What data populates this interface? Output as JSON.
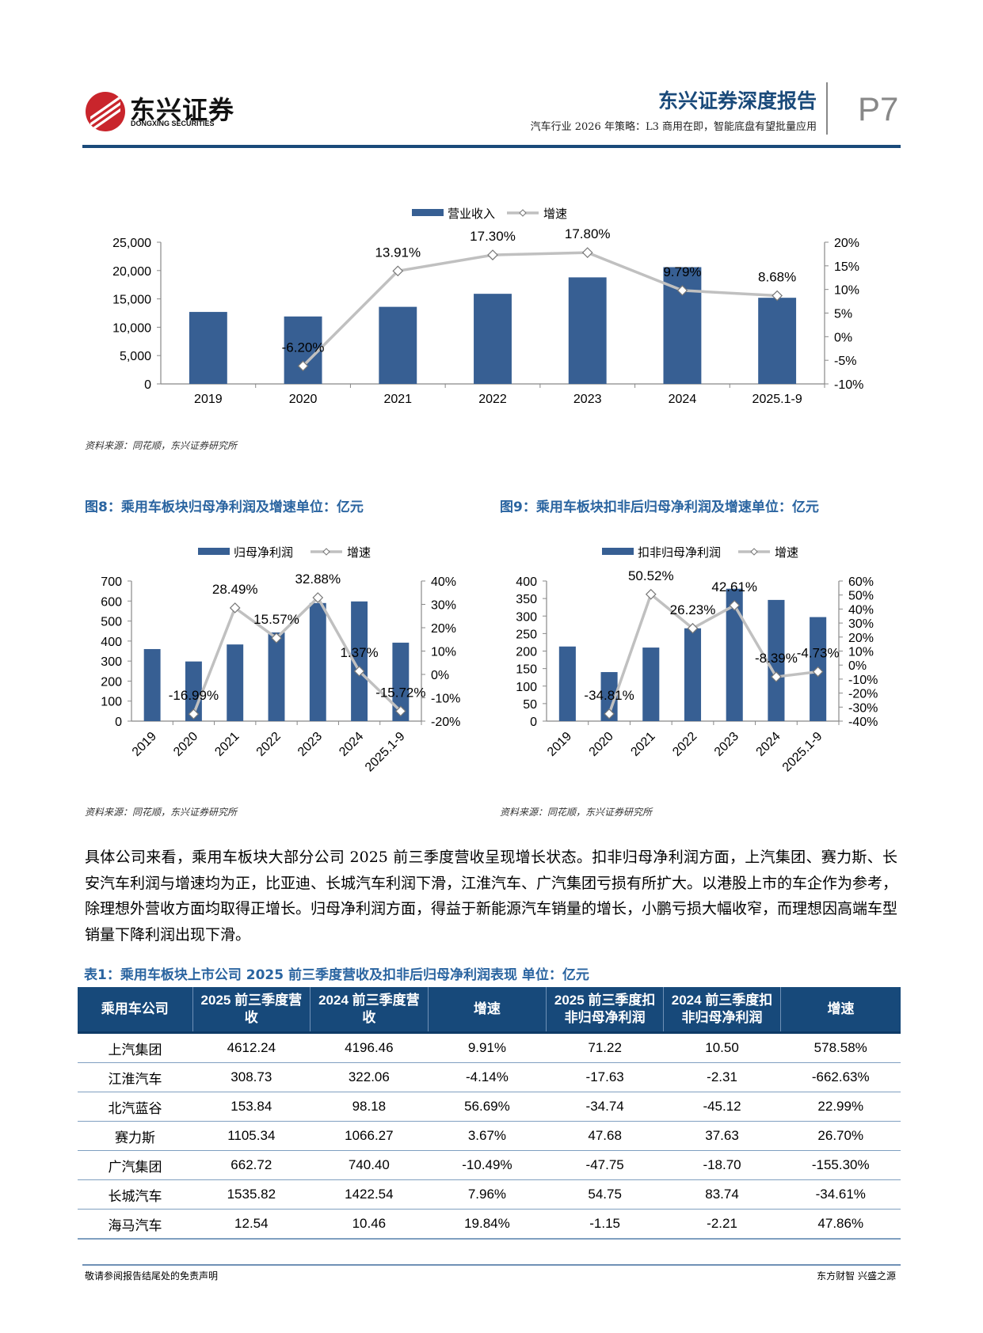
{
  "header": {
    "logo_cn": "东兴证券",
    "logo_en": "DONGXING SECURITIES",
    "report_title": "东兴证券深度报告",
    "report_subtitle": "汽车行业 2026 年策略：L3 商用在即，智能底盘有望批量应用",
    "page_number": "P7"
  },
  "colors": {
    "bar": "#375f93",
    "line": "#c0c0c0",
    "title_blue": "#2a64a0",
    "header_blue": "#17497a"
  },
  "figures": [
    {
      "title": "",
      "source": "资料来源：同花顺，东兴证券研究所"
    },
    {
      "title": "图8：乘用车板块归母净利润及增速单位：亿元",
      "source": "资料来源：同花顺，东兴证券研究所"
    },
    {
      "title": "图9：乘用车板块扣非后归母净利润及增速单位：亿元",
      "source": "资料来源：同花顺，东兴证券研究所"
    }
  ],
  "chart_data": [
    {
      "type": "bar+line",
      "categories": [
        "2019",
        "2020",
        "2021",
        "2022",
        "2023",
        "2024",
        "2025.1-9"
      ],
      "series": [
        {
          "name": "营业收入",
          "type": "bar",
          "axis": "left",
          "values": [
            12700,
            11900,
            13600,
            15900,
            18800,
            20600,
            15200
          ]
        },
        {
          "name": "增速",
          "type": "line",
          "axis": "right",
          "values": [
            null,
            -6.2,
            13.91,
            17.3,
            17.8,
            9.79,
            8.68
          ],
          "labels": [
            "",
            "-6.20%",
            "13.91%",
            "17.30%",
            "17.80%",
            "9.79%",
            "8.68%"
          ]
        }
      ],
      "ylim_left": [
        0,
        25000
      ],
      "ystep_left": 5000,
      "ylim_right": [
        -10,
        20
      ],
      "ystep_right": 5,
      "right_unit": "%",
      "left_thousands": true,
      "legend": "top",
      "xlabels_rotated": false
    },
    {
      "type": "bar+line",
      "categories": [
        "2019",
        "2020",
        "2021",
        "2022",
        "2023",
        "2024",
        "2025.1-9"
      ],
      "series": [
        {
          "name": "归母净利润",
          "type": "bar",
          "axis": "left",
          "values": [
            360,
            298,
            383,
            443,
            590,
            598,
            392
          ]
        },
        {
          "name": "增速",
          "type": "line",
          "axis": "right",
          "values": [
            null,
            -16.99,
            28.49,
            15.57,
            32.88,
            1.37,
            -15.72
          ],
          "labels": [
            "",
            "-16.99%",
            "28.49%",
            "15.57%",
            "32.88%",
            "1.37%",
            "-15.72%"
          ]
        }
      ],
      "ylim_left": [
        0,
        700
      ],
      "ystep_left": 100,
      "ylim_right": [
        -20,
        40
      ],
      "ystep_right": 10,
      "right_unit": "%",
      "left_thousands": false,
      "legend": "top",
      "xlabels_rotated": true
    },
    {
      "type": "bar+line",
      "categories": [
        "2019",
        "2020",
        "2021",
        "2022",
        "2023",
        "2024",
        "2025.1-9"
      ],
      "series": [
        {
          "name": "扣非归母净利润",
          "type": "bar",
          "axis": "left",
          "values": [
            213,
            140,
            210,
            265,
            378,
            346,
            297
          ]
        },
        {
          "name": "增速",
          "type": "line",
          "axis": "right",
          "values": [
            null,
            -34.81,
            50.52,
            26.23,
            42.61,
            -8.39,
            -4.73
          ],
          "labels": [
            "",
            "-34.81%",
            "50.52%",
            "26.23%",
            "42.61%",
            "-8.39%",
            "-4.73%"
          ]
        }
      ],
      "ylim_left": [
        0,
        400
      ],
      "ystep_left": 50,
      "ylim_right": [
        -40,
        60
      ],
      "ystep_right": 10,
      "right_unit": "%",
      "left_thousands": false,
      "legend": "top",
      "xlabels_rotated": true
    }
  ],
  "body": {
    "paragraph": "具体公司来看，乘用车板块大部分公司 2025 前三季度营收呈现增长状态。扣非归母净利润方面，上汽集团、赛力斯、长安汽车利润与增速均为正，比亚迪、长城汽车利润下滑，江淮汽车、广汽集团亏损有所扩大。以港股上市的车企作为参考，除理想外营收方面均取得正增长。归母净利润方面，得益于新能源汽车销量的增长，小鹏亏损大幅收窄，而理想因高端车型销量下降利润出现下滑。"
  },
  "table": {
    "title": "表1：乘用车板块上市公司 2025 前三季度营收及扣非后归母净利润表现  单位：亿元",
    "headers": [
      "乘用车公司",
      "2025 前三季度营收",
      "2024 前三季度营收",
      "增速",
      "2025 前三季度扣非归母净利润",
      "2024 前三季度扣非归母净利润",
      "增速"
    ],
    "rows": [
      [
        "上汽集团",
        "4612.24",
        "4196.46",
        "9.91%",
        "71.22",
        "10.50",
        "578.58%"
      ],
      [
        "江淮汽车",
        "308.73",
        "322.06",
        "-4.14%",
        "-17.63",
        "-2.31",
        "-662.63%"
      ],
      [
        "北汽蓝谷",
        "153.84",
        "98.18",
        "56.69%",
        "-34.74",
        "-45.12",
        "22.99%"
      ],
      [
        "赛力斯",
        "1105.34",
        "1066.27",
        "3.67%",
        "47.68",
        "37.63",
        "26.70%"
      ],
      [
        "广汽集团",
        "662.72",
        "740.40",
        "-10.49%",
        "-47.75",
        "-18.70",
        "-155.30%"
      ],
      [
        "长城汽车",
        "1535.82",
        "1422.54",
        "7.96%",
        "54.75",
        "83.74",
        "-34.61%"
      ],
      [
        "海马汽车",
        "12.54",
        "10.46",
        "19.84%",
        "-1.15",
        "-2.21",
        "47.86%"
      ]
    ]
  },
  "footer": {
    "left": "敬请参阅报告结尾处的免责声明",
    "right": "东方财智 兴盛之源"
  }
}
